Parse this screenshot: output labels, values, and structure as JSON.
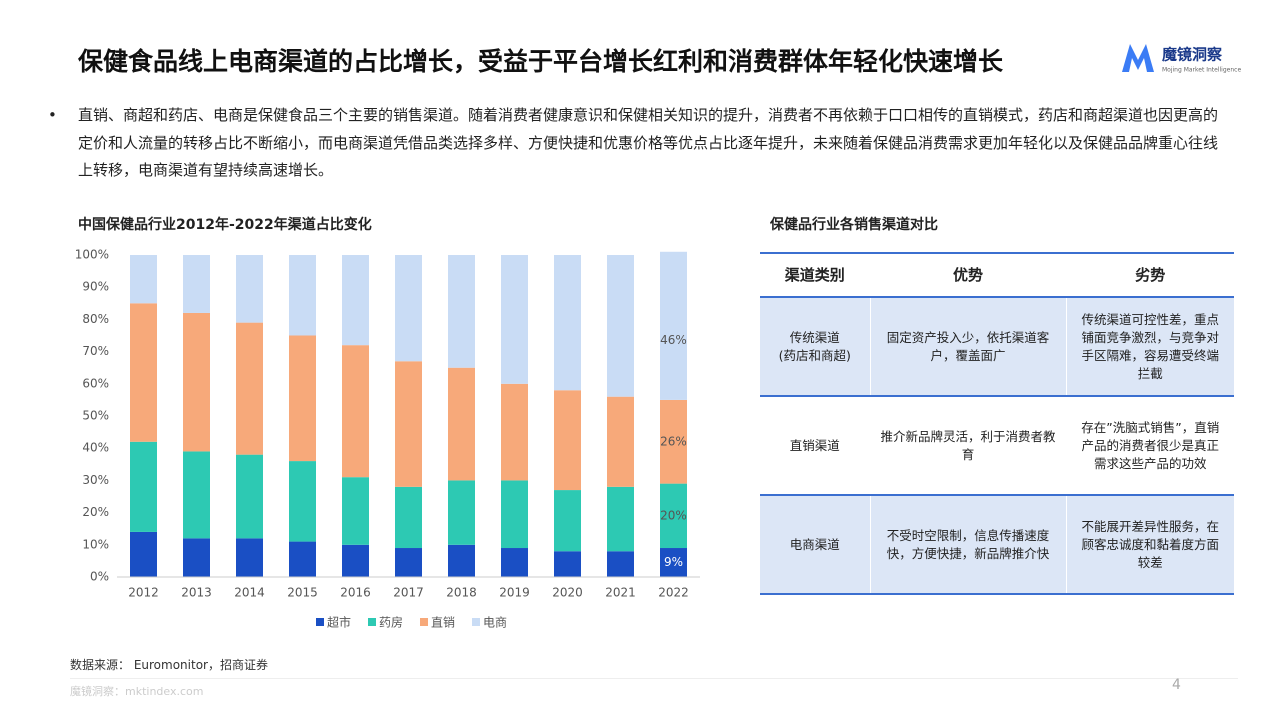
{
  "header": {
    "title": "保健食品线上电商渠道的占比增长，受益于平台增长红利和消费群体年轻化快速增长",
    "logo_name": "魔镜洞察",
    "logo_sub": "Mojing Market Intelligence"
  },
  "bullet": "直销、商超和药店、电商是保健食品三个主要的销售渠道。随着消费者健康意识和保健相关知识的提升，消费者不再依赖于口口相传的直销模式，药店和商超渠道也因更高的定价和人流量的转移占比不断缩小，而电商渠道凭借品类选择多样、方便快捷和优惠价格等优点占比逐年提升，未来随着保健品消费需求更加年轻化以及保健品品牌重心往线上转移，电商渠道有望持续高速增长。",
  "chart_data": {
    "type": "stacked_bar",
    "title": "中国保健品行业2012年-2022年渠道占比变化",
    "categories": [
      "2012",
      "2013",
      "2014",
      "2015",
      "2016",
      "2017",
      "2018",
      "2019",
      "2020",
      "2021",
      "2022"
    ],
    "series": [
      {
        "name": "超市",
        "color": "#1a4fc4",
        "values": [
          14,
          12,
          12,
          11,
          10,
          9,
          10,
          9,
          8,
          8,
          9
        ],
        "value_labels": [
          null,
          null,
          null,
          null,
          null,
          null,
          null,
          null,
          null,
          null,
          "9%"
        ]
      },
      {
        "name": "药房",
        "color": "#2dc9b3",
        "values": [
          28,
          27,
          26,
          25,
          21,
          19,
          20,
          21,
          19,
          20,
          20
        ],
        "value_labels": [
          null,
          null,
          null,
          null,
          null,
          null,
          null,
          null,
          null,
          null,
          "20%"
        ]
      },
      {
        "name": "直销",
        "color": "#f7a97a",
        "values": [
          43,
          43,
          41,
          39,
          41,
          39,
          35,
          30,
          31,
          28,
          26
        ],
        "value_labels": [
          null,
          null,
          null,
          null,
          null,
          null,
          null,
          null,
          null,
          null,
          "26%"
        ]
      },
      {
        "name": "电商",
        "color": "#c9dcf5",
        "values": [
          15,
          18,
          21,
          25,
          28,
          33,
          35,
          40,
          42,
          44,
          46
        ],
        "value_labels": [
          null,
          null,
          null,
          null,
          null,
          null,
          null,
          null,
          null,
          null,
          "46%"
        ]
      }
    ],
    "ylim": [
      0,
      100
    ],
    "yticks": [
      {
        "value": 0,
        "label": "0%"
      },
      {
        "value": 10,
        "label": "10%"
      },
      {
        "value": 20,
        "label": "20%"
      },
      {
        "value": 30,
        "label": "30%"
      },
      {
        "value": 40,
        "label": "40%"
      },
      {
        "value": 50,
        "label": "50%"
      },
      {
        "value": 60,
        "label": "60%"
      },
      {
        "value": 70,
        "label": "70%"
      },
      {
        "value": 80,
        "label": "80%"
      },
      {
        "value": 90,
        "label": "90%"
      },
      {
        "value": 100,
        "label": "100%"
      }
    ],
    "legend": "bottom"
  },
  "table": {
    "title": "保健品行业各销售渠道对比",
    "header": [
      "渠道类别",
      "优势",
      "劣势"
    ],
    "rows": [
      [
        "传统渠道\n(药店和商超)",
        "固定资产投入少，依托渠道客户，覆盖面广",
        "传统渠道可控性差，重点铺面竞争激烈，与竞争对手区隔难，容易遭受终端拦截"
      ],
      [
        "直销渠道",
        "推介新品牌灵活，利于消费者教育",
        "存在”洗脑式销售”，直销产品的消费者很少是真正需求这些产品的功效"
      ],
      [
        "电商渠道",
        "不受时空限制，信息传播速度快，方便快捷，新品牌推介快",
        "不能展开差异性服务，在顾客忠诚度和黏着度方面较差"
      ]
    ]
  },
  "source": "数据来源： Euromonitor，招商证券",
  "footer": "魔镜洞察：mktindex.com",
  "page": "4"
}
